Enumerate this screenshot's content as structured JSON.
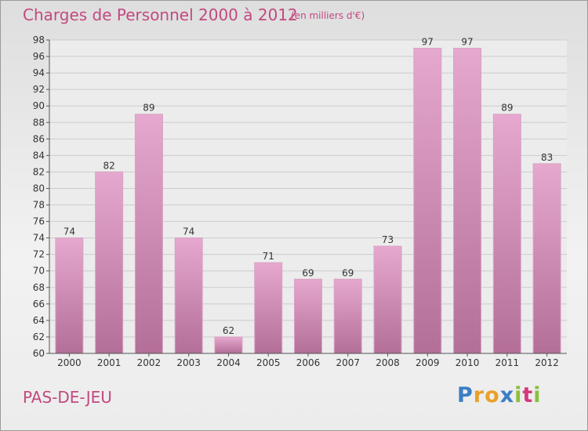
{
  "title": "Charges de Personnel 2000 à 2012",
  "subtitle": "(en milliers d'€)",
  "commune": "PAS-DE-JEU",
  "logo": {
    "letters": [
      "P",
      "r",
      "o",
      "x",
      "i",
      "t",
      "i"
    ],
    "colors": [
      "#3a7ec4",
      "#e8a02a",
      "#e8a02a",
      "#3a7ec4",
      "#8bbf3a",
      "#d4397a",
      "#8bbf3a"
    ]
  },
  "colors": {
    "bar_top": "#e6a8cf",
    "bar_bottom": "#b36f98",
    "title": "#c2497f"
  },
  "chart_data": {
    "type": "bar",
    "title": "Charges de Personnel 2000 à 2012",
    "subtitle": "(en milliers d'€)",
    "categories": [
      "2000",
      "2001",
      "2002",
      "2003",
      "2004",
      "2005",
      "2006",
      "2007",
      "2008",
      "2009",
      "2010",
      "2011",
      "2012"
    ],
    "values": [
      74,
      82,
      89,
      74,
      62,
      71,
      69,
      69,
      73,
      97,
      97,
      89,
      83
    ],
    "ylim": [
      60,
      98
    ],
    "yticks": [
      60,
      62,
      64,
      66,
      68,
      70,
      72,
      74,
      76,
      78,
      80,
      82,
      84,
      86,
      88,
      90,
      92,
      94,
      96,
      98
    ],
    "grid": true,
    "legend": "none"
  }
}
